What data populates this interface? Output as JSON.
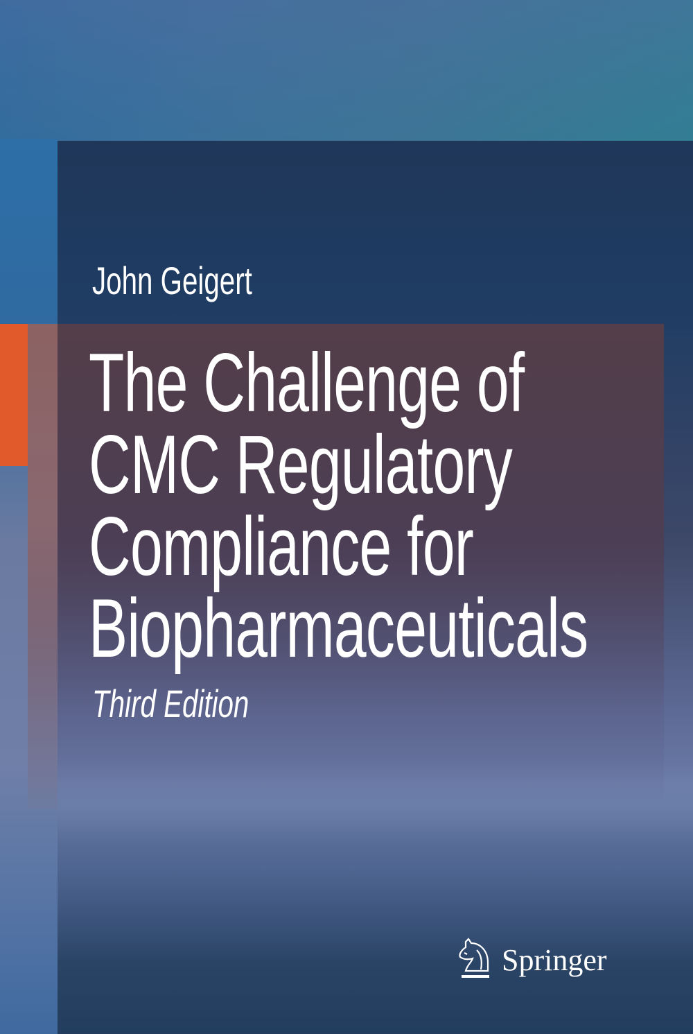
{
  "cover": {
    "author": "John Geigert",
    "title_lines": [
      "The Challenge of",
      "CMC Regulatory",
      "Compliance for",
      "Biopharmaceuticals"
    ],
    "edition": "Third Edition",
    "publisher": "Springer",
    "publisher_logo_icon": "knight-horse-icon",
    "accent_color": "#e15a2b"
  }
}
